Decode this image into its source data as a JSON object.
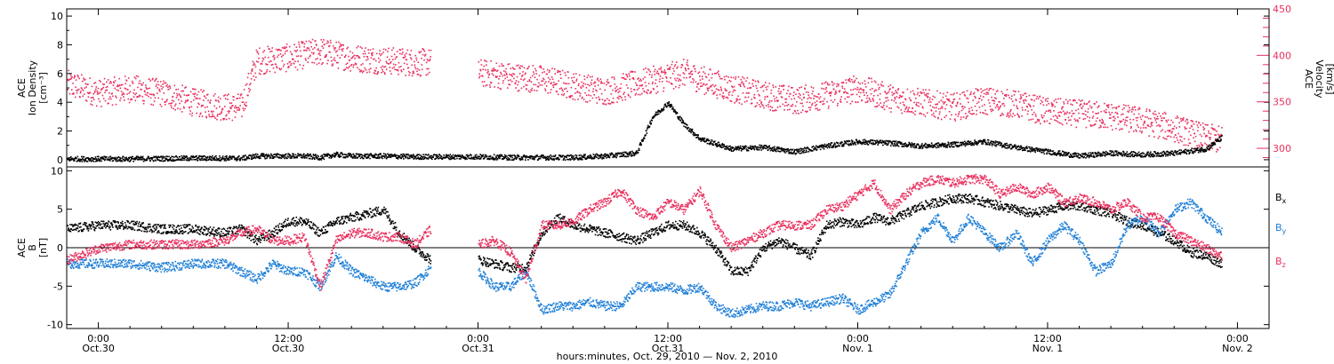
{
  "figure": {
    "bottom_title": "hours:minutes, Oct. 29, 2010 — Nov.  2, 2010"
  },
  "colors": {
    "axis": "#000000",
    "density": "#000000",
    "velocity": "#e8305e",
    "bx": "#000000",
    "by": "#1f7fd6",
    "bz": "#e8305e",
    "right_axis": "#e8305e"
  },
  "chart_data": [
    {
      "type": "scatter",
      "panel": "top",
      "x_unit": "hours since 0:00 Oct.30",
      "xlim": [
        -2,
        74
      ],
      "ylabel": [
        "ACE",
        "Ion Density",
        "[cm⁻³]"
      ],
      "ylim": [
        -0.5,
        10.5
      ],
      "yticks": [
        0,
        2,
        4,
        6,
        8,
        10
      ],
      "y2label": [
        "ACE",
        "Velocity",
        "[km/s]"
      ],
      "y2lim": [
        280,
        450
      ],
      "y2ticks": [
        300,
        350,
        400,
        450
      ],
      "y2tick_labels": [
        "300",
        "350",
        "400",
        "450"
      ],
      "yticklabels": [
        "0",
        "2",
        "4",
        "6",
        "8",
        "10"
      ],
      "series": [
        {
          "key": "density",
          "axis": "left",
          "segments": [
            {
              "x": [
                -2,
                2,
                6,
                9,
                10,
                11,
                13,
                14,
                15,
                16,
                18,
                20,
                22,
                24,
                26,
                28,
                30,
                32,
                34,
                35,
                36,
                37,
                38,
                40,
                42,
                44,
                46,
                48,
                50,
                52,
                54,
                56,
                58,
                60,
                62,
                64,
                66,
                68,
                70,
                71
              ],
              "y": [
                0.1,
                0.1,
                0.15,
                0.15,
                0.3,
                0.3,
                0.3,
                0.2,
                0.4,
                0.3,
                0.3,
                0.25,
                0.25,
                0.25,
                0.2,
                0.2,
                0.2,
                0.3,
                0.5,
                3,
                4,
                2.5,
                1.5,
                0.8,
                0.9,
                0.6,
                1.0,
                1.3,
                1.2,
                1.0,
                1.1,
                1.3,
                0.9,
                0.6,
                0.3,
                0.5,
                0.4,
                0.5,
                0.8,
                1.6
              ]
            }
          ]
        },
        {
          "key": "velocity",
          "axis": "right",
          "segments": [
            {
              "x": [
                -2,
                0,
                2,
                4,
                6,
                8,
                9,
                10,
                12,
                14,
                16,
                18,
                20,
                21
              ],
              "y": [
                370,
                360,
                365,
                360,
                350,
                345,
                345,
                395,
                398,
                405,
                398,
                395,
                393,
                393
              ]
            },
            {
              "x": [
                24,
                26,
                28,
                30,
                32,
                34,
                36,
                37,
                38,
                40,
                42,
                44,
                46,
                48,
                50,
                52,
                54,
                56,
                58,
                60,
                62,
                64,
                66,
                68,
                70,
                71
              ],
              "y": [
                382,
                378,
                375,
                368,
                362,
                370,
                378,
                382,
                375,
                365,
                358,
                352,
                358,
                365,
                355,
                350,
                345,
                352,
                348,
                340,
                338,
                335,
                330,
                322,
                312,
                310
              ]
            }
          ]
        }
      ]
    },
    {
      "type": "scatter",
      "panel": "bottom",
      "x_unit": "hours since 0:00 Oct.30",
      "xlim": [
        -2,
        74
      ],
      "ylabel": [
        "ACE",
        "B",
        "[nT]"
      ],
      "ylim": [
        -10.5,
        10.5
      ],
      "yticks": [
        -10,
        -5,
        0,
        5,
        10
      ],
      "yticklabels": [
        "-10",
        "-5",
        "0",
        "5",
        "10"
      ],
      "xticks": [
        0,
        12,
        24,
        36,
        48,
        60,
        72
      ],
      "xticklabels_time": [
        "0:00",
        "12:00",
        "0:00",
        "12:00",
        "0:00",
        "12:00",
        "0:00"
      ],
      "xticklabels_date": [
        "Oct.30",
        "Oct.30",
        "Oct.31",
        "Oct.31",
        "Nov. 1",
        "Nov. 1",
        "Nov. 2"
      ],
      "legend": [
        "Bx",
        "By",
        "Bz"
      ],
      "series": [
        {
          "key": "bx",
          "name": "Bx",
          "segments": [
            {
              "x": [
                -2,
                0,
                2,
                4,
                6,
                8,
                9,
                10,
                11,
                12,
                13,
                14,
                15,
                16,
                17,
                18,
                19,
                20,
                21
              ],
              "y": [
                2.5,
                3,
                3,
                2.5,
                2.5,
                2,
                2.5,
                1,
                2,
                3.5,
                3.5,
                2,
                3.5,
                4,
                4.5,
                5,
                2,
                0,
                -1.5
              ]
            },
            {
              "x": [
                24,
                25,
                26,
                27,
                28,
                29,
                30,
                31,
                32,
                33,
                34,
                35,
                36,
                37,
                38,
                39,
                40,
                41,
                42,
                43,
                44,
                45,
                46,
                47,
                48,
                49,
                50,
                51,
                52,
                53,
                54,
                55,
                56,
                57,
                58,
                59,
                60,
                61,
                62,
                63,
                64,
                65,
                66,
                67,
                68,
                69,
                70,
                71
              ],
              "y": [
                -1.5,
                -2,
                -2.5,
                -2.5,
                2,
                4,
                3,
                2.5,
                2,
                1.5,
                1,
                2,
                3,
                3,
                2,
                0,
                -3,
                -3,
                0,
                1,
                0,
                -1,
                3,
                3.5,
                3,
                4,
                3.5,
                4.5,
                5.5,
                6,
                6.5,
                6.5,
                6,
                5.5,
                5,
                4.5,
                5,
                5.5,
                5.5,
                5,
                4.5,
                3.5,
                3,
                2,
                1,
                -0.5,
                -1,
                -2
              ]
            }
          ]
        },
        {
          "key": "by",
          "name": "By",
          "segments": [
            {
              "x": [
                -2,
                0,
                2,
                4,
                6,
                8,
                9,
                10,
                11,
                12,
                13,
                14,
                15,
                16,
                17,
                18,
                19,
                20,
                21
              ],
              "y": [
                -2,
                -2,
                -2,
                -2.5,
                -2,
                -2,
                -3,
                -4,
                -2,
                -3,
                -3,
                -5,
                -1,
                -3,
                -4,
                -5,
                -5,
                -4.5,
                -2.5
              ]
            },
            {
              "x": [
                24,
                25,
                26,
                27,
                28,
                29,
                30,
                31,
                32,
                33,
                34,
                35,
                36,
                37,
                38,
                39,
                40,
                41,
                42,
                43,
                44,
                45,
                46,
                47,
                48,
                49,
                50,
                51,
                52,
                53,
                54,
                55,
                56,
                57,
                58,
                59,
                60,
                61,
                62,
                63,
                64,
                65,
                66,
                67,
                68,
                69,
                70,
                71
              ],
              "y": [
                -3,
                -5,
                -5,
                -3,
                -8,
                -7.5,
                -7.5,
                -7,
                -7.5,
                -7.5,
                -5,
                -5,
                -5,
                -5.5,
                -5,
                -7.5,
                -8.5,
                -8,
                -7.5,
                -7.5,
                -7,
                -7.5,
                -7,
                -6.5,
                -8,
                -7,
                -6,
                -2,
                2,
                4,
                1,
                4,
                2,
                0,
                2,
                -2,
                1,
                3,
                1,
                -3,
                -2,
                3,
                4,
                2,
                5,
                6,
                4,
                2
              ]
            }
          ]
        },
        {
          "key": "bz",
          "name": "Bz",
          "segments": [
            {
              "x": [
                -2,
                0,
                2,
                4,
                6,
                8,
                9,
                10,
                11,
                12,
                13,
                14,
                15,
                16,
                17,
                18,
                19,
                20,
                21
              ],
              "y": [
                -1.5,
                0,
                0.5,
                0.5,
                0.5,
                1,
                2,
                2.5,
                1,
                1,
                1.5,
                -5,
                1,
                2,
                2,
                1.5,
                1.5,
                0.5,
                2.5
              ]
            },
            {
              "x": [
                24,
                25,
                26,
                27,
                28,
                29,
                30,
                31,
                32,
                33,
                34,
                35,
                36,
                37,
                38,
                39,
                40,
                41,
                42,
                43,
                44,
                45,
                46,
                47,
                48,
                49,
                50,
                51,
                52,
                53,
                54,
                55,
                56,
                57,
                58,
                59,
                60,
                61,
                62,
                63,
                64,
                65,
                66,
                67,
                68,
                69,
                70,
                71
              ],
              "y": [
                0.5,
                1,
                -0.5,
                -4,
                3,
                3,
                3.5,
                5,
                6,
                7.5,
                5,
                4,
                6,
                5,
                7.5,
                3,
                0,
                1,
                2,
                3,
                3,
                3,
                5,
                5.5,
                7,
                8.5,
                5,
                7,
                8.5,
                9,
                8.5,
                9,
                9,
                7,
                8,
                7,
                8,
                6,
                6.5,
                6,
                5,
                6,
                4,
                4,
                2,
                1,
                0,
                -1
              ]
            }
          ]
        }
      ]
    }
  ]
}
